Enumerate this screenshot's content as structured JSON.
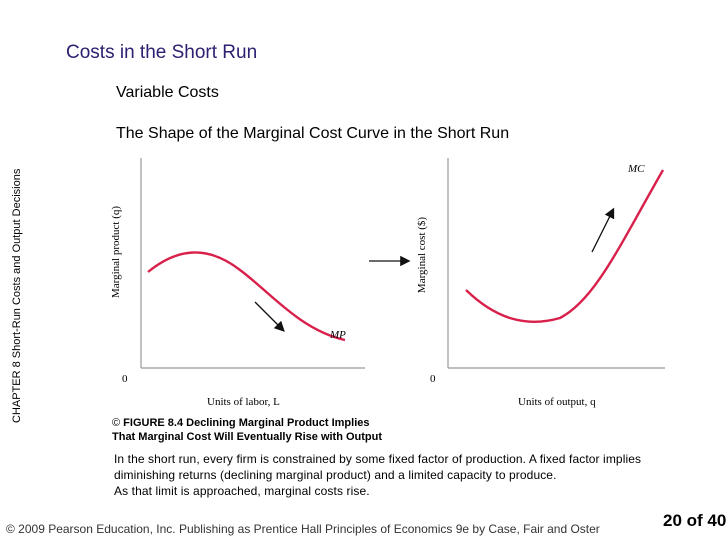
{
  "header": {
    "title": "Costs in the Short Run",
    "section": "Variable Costs",
    "subsection": "The Shape of the Marginal Cost Curve in the Short Run"
  },
  "side_label": "CHAPTER 8  Short-Run Costs and Output Decisions",
  "figure": {
    "left_chart": {
      "ylabel": "Marginal product (q)",
      "xlabel": "Units of labor, L",
      "origin": "0",
      "curve_label": "MP",
      "curve_color": "#d8204a"
    },
    "right_chart": {
      "ylabel": "Marginal cost ($)",
      "xlabel": "Units of output, q",
      "origin": "0",
      "curve_label": "MC",
      "curve_color": "#d8204a"
    },
    "caption_icon": "copyright-circle-icon",
    "caption_glyph": "©",
    "caption_line1": "FIGURE 8.4  Declining Marginal Product Implies",
    "caption_line2": "That Marginal Cost Will Eventually Rise with Output"
  },
  "body": {
    "line1": "In the short run, every firm is constrained by some fixed factor of production. A fixed factor implies",
    "line2": "diminishing returns (declining marginal product) and a limited capacity to produce.",
    "line3": "As that limit is approached, marginal costs rise."
  },
  "footer": {
    "copyright": "© 2009 Pearson Education, Inc. Publishing as Prentice Hall   Principles of Economics 9e by Case, Fair and Oster",
    "page": "20 of 40"
  },
  "colors": {
    "title": "#2b2170",
    "curve": "#d8204a",
    "axis": "#888888"
  }
}
